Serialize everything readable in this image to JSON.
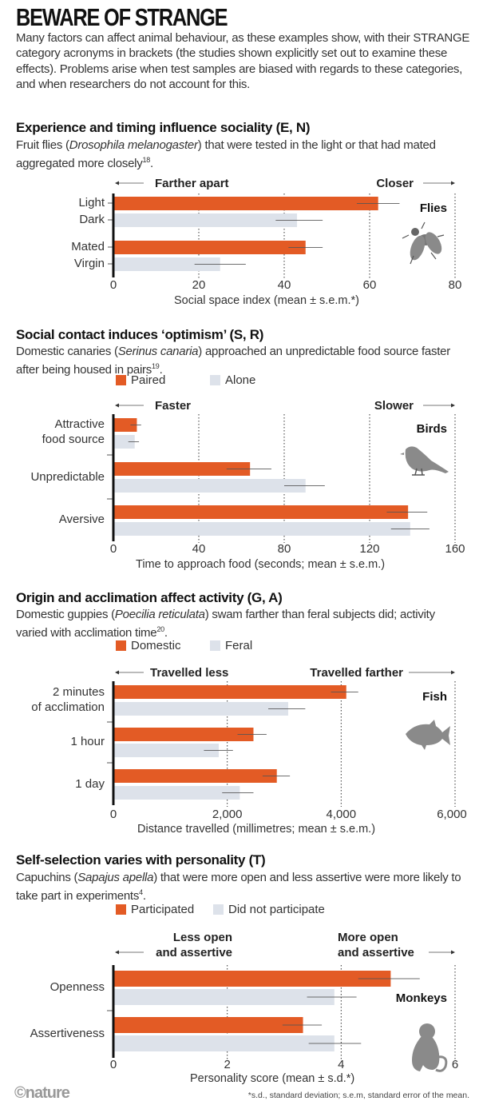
{
  "title": "BEWARE OF STRANGE",
  "intro": "Many factors can affect animal behaviour, as these examples show, with their STRANGE category acronyms in brackets (the studies shown explicitly set out to examine these effects). Problems arise when test samples are biased with regards to these categories, and when researchers do not account for this.",
  "colors": {
    "highlight": "#e35b25",
    "baseline": "#dde2ea",
    "icon": "#8a8a8a"
  },
  "panels": [
    {
      "heading": "Experience and timing influence sociality (E, N)",
      "desc_pre": "Fruit flies (",
      "desc_italic": "Drosophila melanogaster",
      "desc_post": ") that were tested in the light or that had mated aggregated more closely",
      "desc_ref": "18",
      "desc_end": "."
    },
    {
      "heading": "Social contact induces ‘optimism’ (S, R)",
      "desc_pre": "Domestic canaries (",
      "desc_italic": "Serinus canaria",
      "desc_post": ") approached an unpredictable food source faster after being housed in pairs",
      "desc_ref": "19",
      "desc_end": "."
    },
    {
      "heading": "Origin and acclimation affect activity (G, A)",
      "desc_pre": "Domestic guppies (",
      "desc_italic": "Poecilia reticulata",
      "desc_post": ") swam farther than feral subjects did; activity varied with acclimation time",
      "desc_ref": "20",
      "desc_end": "."
    },
    {
      "heading": "Self-selection varies with personality (T)",
      "desc_pre": "Capuchins (",
      "desc_italic": "Sapajus apella",
      "desc_post": ") that were more open and less assertive were more likely to take part in experiments",
      "desc_ref": "4",
      "desc_end": "."
    }
  ],
  "chart_data": [
    {
      "type": "bar",
      "orientation": "horizontal",
      "categories": [
        "Light",
        "Dark",
        "Mated",
        "Virgin"
      ],
      "values": [
        62,
        43,
        45,
        25
      ],
      "errors": [
        [
          57,
          67
        ],
        [
          38,
          49
        ],
        [
          41,
          49
        ],
        [
          19,
          31
        ]
      ],
      "bar_colors": [
        "#e35b25",
        "#dde2ea",
        "#e35b25",
        "#dde2ea"
      ],
      "xlim": [
        0,
        80
      ],
      "xticks": [
        "0",
        "20",
        "40",
        "60",
        "80"
      ],
      "xlabel": "Social space index  (mean ± s.e.m.*)",
      "direction_left": "Farther apart",
      "direction_right": "Closer",
      "animal": "Flies",
      "icon": "fly-icon",
      "grid": "dotted"
    },
    {
      "type": "bar",
      "orientation": "horizontal",
      "categories": [
        "Attractive\nfood source",
        "Unpredictable",
        "Aversive"
      ],
      "series": [
        {
          "name": "Paired",
          "color": "#e35b25",
          "values": [
            11,
            64,
            138
          ],
          "errors": [
            [
              8,
              13
            ],
            [
              53,
              74
            ],
            [
              128,
              147
            ]
          ]
        },
        {
          "name": "Alone",
          "color": "#dde2ea",
          "values": [
            10,
            90,
            139
          ],
          "errors": [
            [
              7,
              12
            ],
            [
              80,
              99
            ],
            [
              130,
              148
            ]
          ]
        }
      ],
      "xlim": [
        0,
        160
      ],
      "xticks": [
        "0",
        "40",
        "80",
        "120",
        "160"
      ],
      "xlabel": "Time to approach food (seconds; mean ± s.e.m.)",
      "direction_left": "Faster",
      "direction_right": "Slower",
      "animal": "Birds",
      "icon": "bird-icon",
      "grid": "dotted"
    },
    {
      "type": "bar",
      "orientation": "horizontal",
      "categories": [
        "2 minutes\nof acclimation",
        "1 hour",
        "1 day"
      ],
      "series": [
        {
          "name": "Domestic",
          "color": "#e35b25",
          "values": [
            4090,
            2460,
            2870
          ],
          "errors": [
            [
              3820,
              4300
            ],
            [
              2180,
              2690
            ],
            [
              2620,
              3100
            ]
          ]
        },
        {
          "name": "Feral",
          "color": "#dde2ea",
          "values": [
            3070,
            1850,
            2220
          ],
          "errors": [
            [
              2720,
              3370
            ],
            [
              1590,
              2100
            ],
            [
              1910,
              2460
            ]
          ]
        }
      ],
      "xlim": [
        0,
        6000
      ],
      "xticks": [
        "0",
        "2,000",
        "4,000",
        "6,000"
      ],
      "xlabel": "Distance travelled (millimetres; mean ± s.e.m.)",
      "direction_left": "Travelled less",
      "direction_right": "Travelled farther",
      "animal": "Fish",
      "icon": "fish-icon",
      "grid": "dotted"
    },
    {
      "type": "bar",
      "orientation": "horizontal",
      "categories": [
        "Openness",
        "Assertiveness"
      ],
      "series": [
        {
          "name": "Participated",
          "color": "#e35b25",
          "values": [
            4.87,
            3.33
          ],
          "errors": [
            [
              4.3,
              5.38
            ],
            [
              2.97,
              3.66
            ]
          ]
        },
        {
          "name": "Did not participate",
          "color": "#dde2ea",
          "values": [
            3.88,
            3.88
          ],
          "errors": [
            [
              3.4,
              4.27
            ],
            [
              3.43,
              4.35
            ]
          ]
        }
      ],
      "xlim": [
        0,
        6
      ],
      "xticks": [
        "0",
        "2",
        "4",
        "6"
      ],
      "xlabel": "Personality score  (mean ± s.d.*)",
      "direction_left": "Less open\nand assertive",
      "direction_right": "More open\nand assertive",
      "animal": "Monkeys",
      "icon": "monkey-icon",
      "grid": "dotted"
    }
  ],
  "footnote": "*s.d., standard deviation; s.e.m, standard error of the mean.",
  "logo": "©nature"
}
